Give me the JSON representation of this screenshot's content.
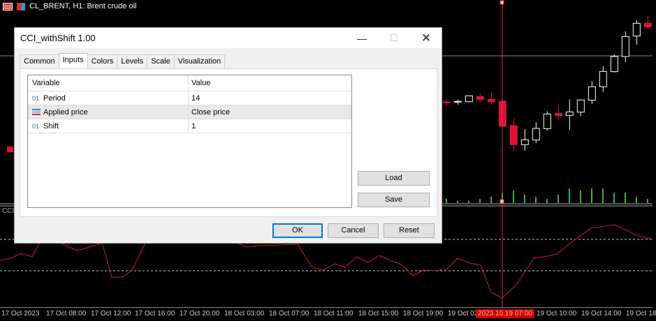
{
  "chart": {
    "symbol_title": "CL_BRENT, H1:  Brent crude oil",
    "indicator_label": "CCI",
    "x_labels": [
      "17 Oct 2023",
      "17 Oct 08:00",
      "17 Oct 12:00",
      "17 Oct 16:00",
      "17 Oct 20:00",
      "18 Oct 03:00",
      "18 Oct 07:00",
      "18 Oct 11:00",
      "18 Oct 15:00",
      "18 Oct 19:00",
      "19 Oct 02",
      "19 Oct 10:00",
      "19 Oct 14:00",
      "19 Oct 18"
    ],
    "crosshair_time": "2023.10.19 07:00",
    "colors": {
      "bull": "#ffffff",
      "bear": "#dc143c",
      "volume": "#3cb043",
      "cci": "#d42020",
      "crosshair": "#e03030"
    }
  },
  "dialog": {
    "title": "CCI_withShift 1.00",
    "tabs": [
      "Common",
      "Inputs",
      "Colors",
      "Levels",
      "Scale",
      "Visualization"
    ],
    "active_tab": "Inputs",
    "table": {
      "headers": [
        "Variable",
        "Value"
      ],
      "rows": [
        {
          "icon": "int-icon",
          "icon_text": "01",
          "name": "Period",
          "value": "14"
        },
        {
          "icon": "enum-icon",
          "name": "Applied price",
          "value": "Close price"
        },
        {
          "icon": "int-icon",
          "icon_text": "01",
          "name": "Shift",
          "value": "1"
        }
      ]
    },
    "load": "Load",
    "save": "Save",
    "ok": "OK",
    "cancel": "Cancel",
    "reset": "Reset"
  }
}
